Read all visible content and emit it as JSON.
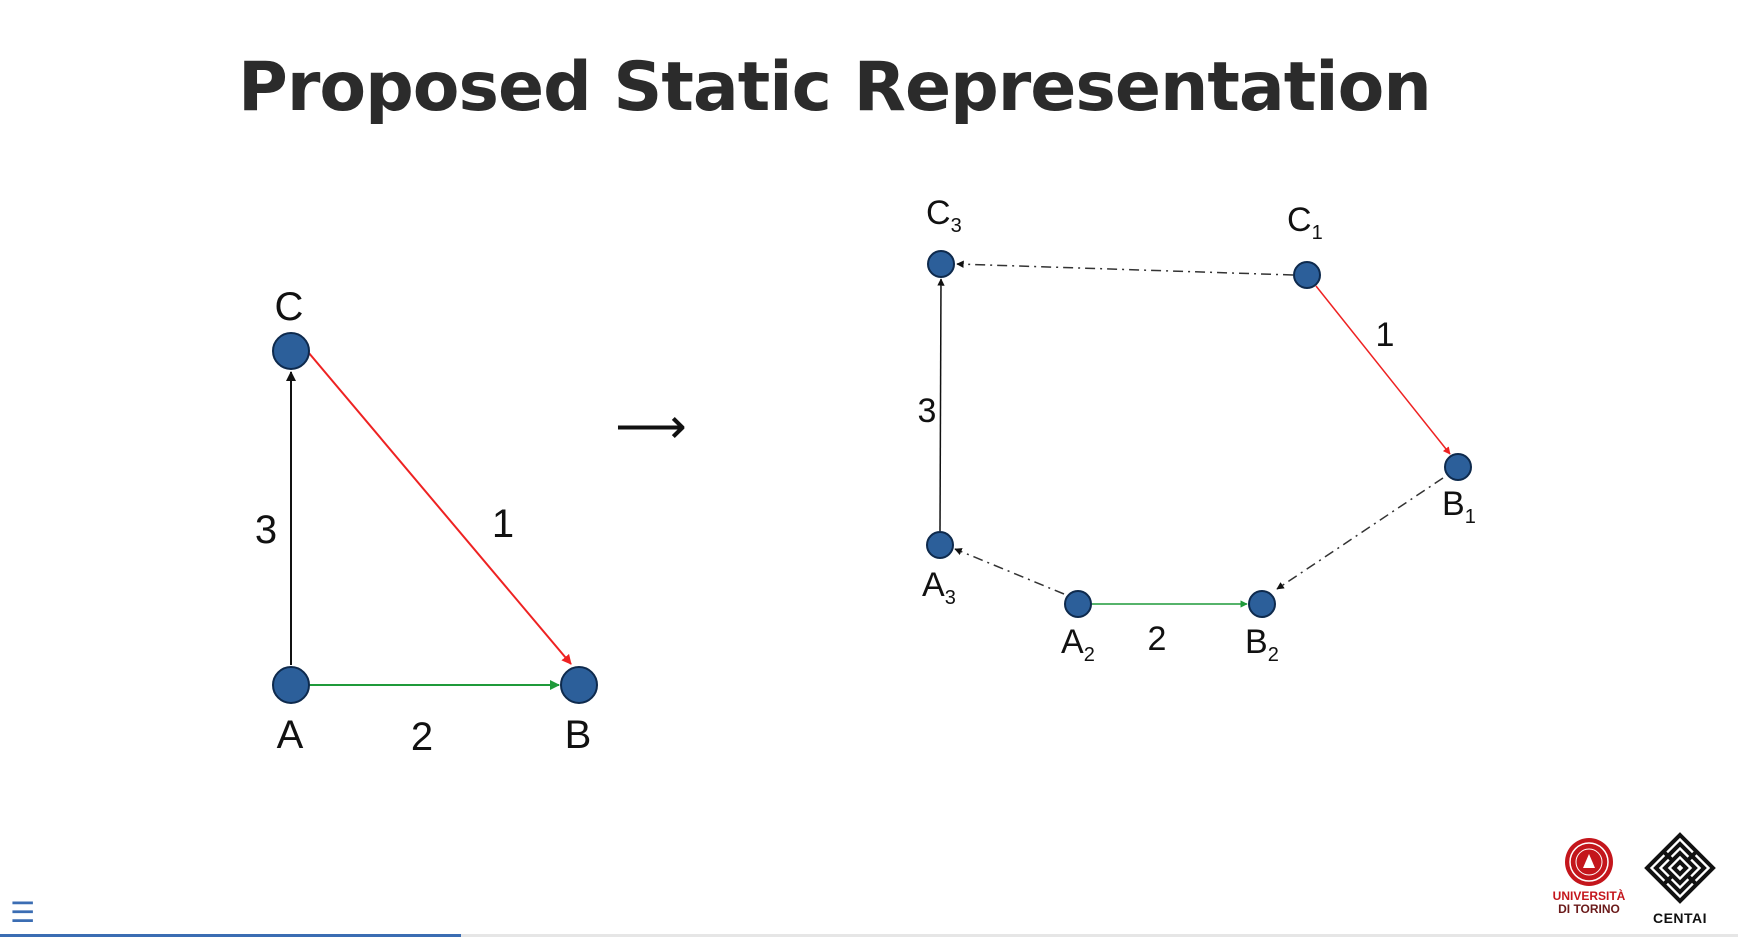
{
  "slide": {
    "title": "Proposed Static Representation"
  },
  "transform_arrow": "⟶",
  "left_graph": {
    "nodes": [
      "A",
      "B",
      "C"
    ],
    "edge_labels": {
      "AC": "3",
      "AB": "2",
      "CB": "1"
    }
  },
  "right_graph": {
    "nodes": [
      {
        "base": "C",
        "sub": "3"
      },
      {
        "base": "C",
        "sub": "1"
      },
      {
        "base": "B",
        "sub": "1"
      },
      {
        "base": "A",
        "sub": "3"
      },
      {
        "base": "A",
        "sub": "2"
      },
      {
        "base": "B",
        "sub": "2"
      }
    ],
    "edge_labels": {
      "A3C3": "3",
      "A2B2": "2",
      "C1B1": "1"
    }
  },
  "logos": {
    "unito": {
      "line1": "UNIVERSITÀ",
      "line2": "DI TORINO"
    },
    "centai": {
      "name": "CENTAI"
    }
  },
  "colors": {
    "node": "#2c5f9a",
    "red_edge": "#ee2222",
    "green_edge": "#1f9a3a",
    "black_edge": "#111111",
    "accent": "#3b6db3"
  },
  "progress": {
    "fraction": 0.265
  },
  "menu": {
    "icon": "menu-icon",
    "glyph": "☰"
  }
}
